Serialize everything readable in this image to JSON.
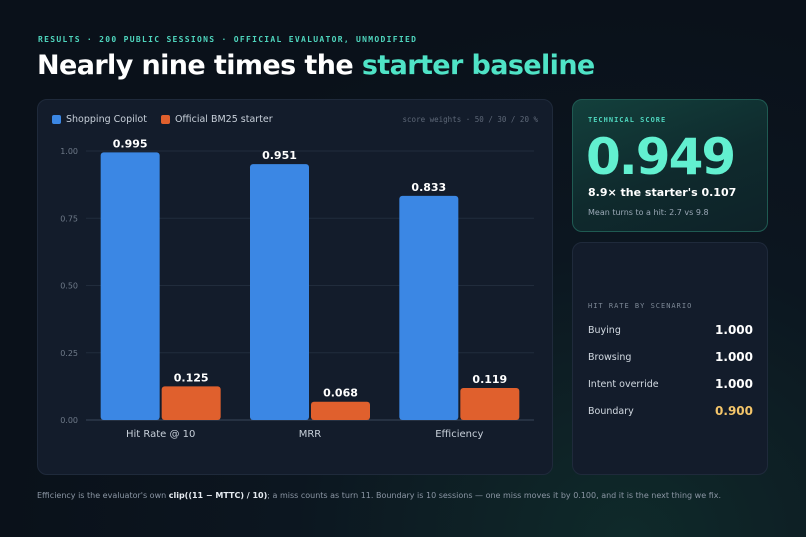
{
  "header": {
    "eyebrow": "RESULTS · 200 PUBLIC SESSIONS · OFFICIAL EVALUATOR, UNMODIFIED",
    "title_main": "Nearly nine times the ",
    "title_accent": "starter baseline"
  },
  "chart_card": {
    "weights_note": "score weights · 50 / 30 / 20 %"
  },
  "chart_data": {
    "type": "bar",
    "categories": [
      "Hit Rate @ 10",
      "MRR",
      "Efficiency"
    ],
    "series": [
      {
        "name": "Shopping Copilot",
        "values": [
          0.995,
          0.951,
          0.833
        ],
        "color": "#3b87e4"
      },
      {
        "name": "Official BM25 starter",
        "values": [
          0.125,
          0.068,
          0.119
        ],
        "color": "#e0602d"
      }
    ],
    "value_labels": [
      [
        "0.995",
        "0.951",
        "0.833"
      ],
      [
        "0.125",
        "0.068",
        "0.119"
      ]
    ],
    "yticks": [
      "0.00",
      "0.25",
      "0.50",
      "0.75",
      "1.00"
    ],
    "ylim": [
      0,
      1
    ],
    "grid": true,
    "legend": "top-left"
  },
  "score_card": {
    "label": "TECHNICAL SCORE",
    "value": "0.949",
    "comparison": "8.9× the starter's 0.107",
    "note": "Mean turns to a hit: 2.7 vs 9.8"
  },
  "scenarios": {
    "label": "HIT RATE BY SCENARIO",
    "rows": [
      {
        "name": "Buying",
        "value": "1.000",
        "highlight": false
      },
      {
        "name": "Browsing",
        "value": "1.000",
        "highlight": false
      },
      {
        "name": "Intent override",
        "value": "1.000",
        "highlight": false
      },
      {
        "name": "Boundary",
        "value": "0.900",
        "highlight": true
      }
    ]
  },
  "footnote": {
    "pre": "Efficiency is the evaluator's own ",
    "formula": "clip((11 − MTTC) / 10)",
    "post": "; a miss counts as turn 11. Boundary is 10 sessions — one miss moves it by 0.100, and it is the next thing we fix."
  }
}
